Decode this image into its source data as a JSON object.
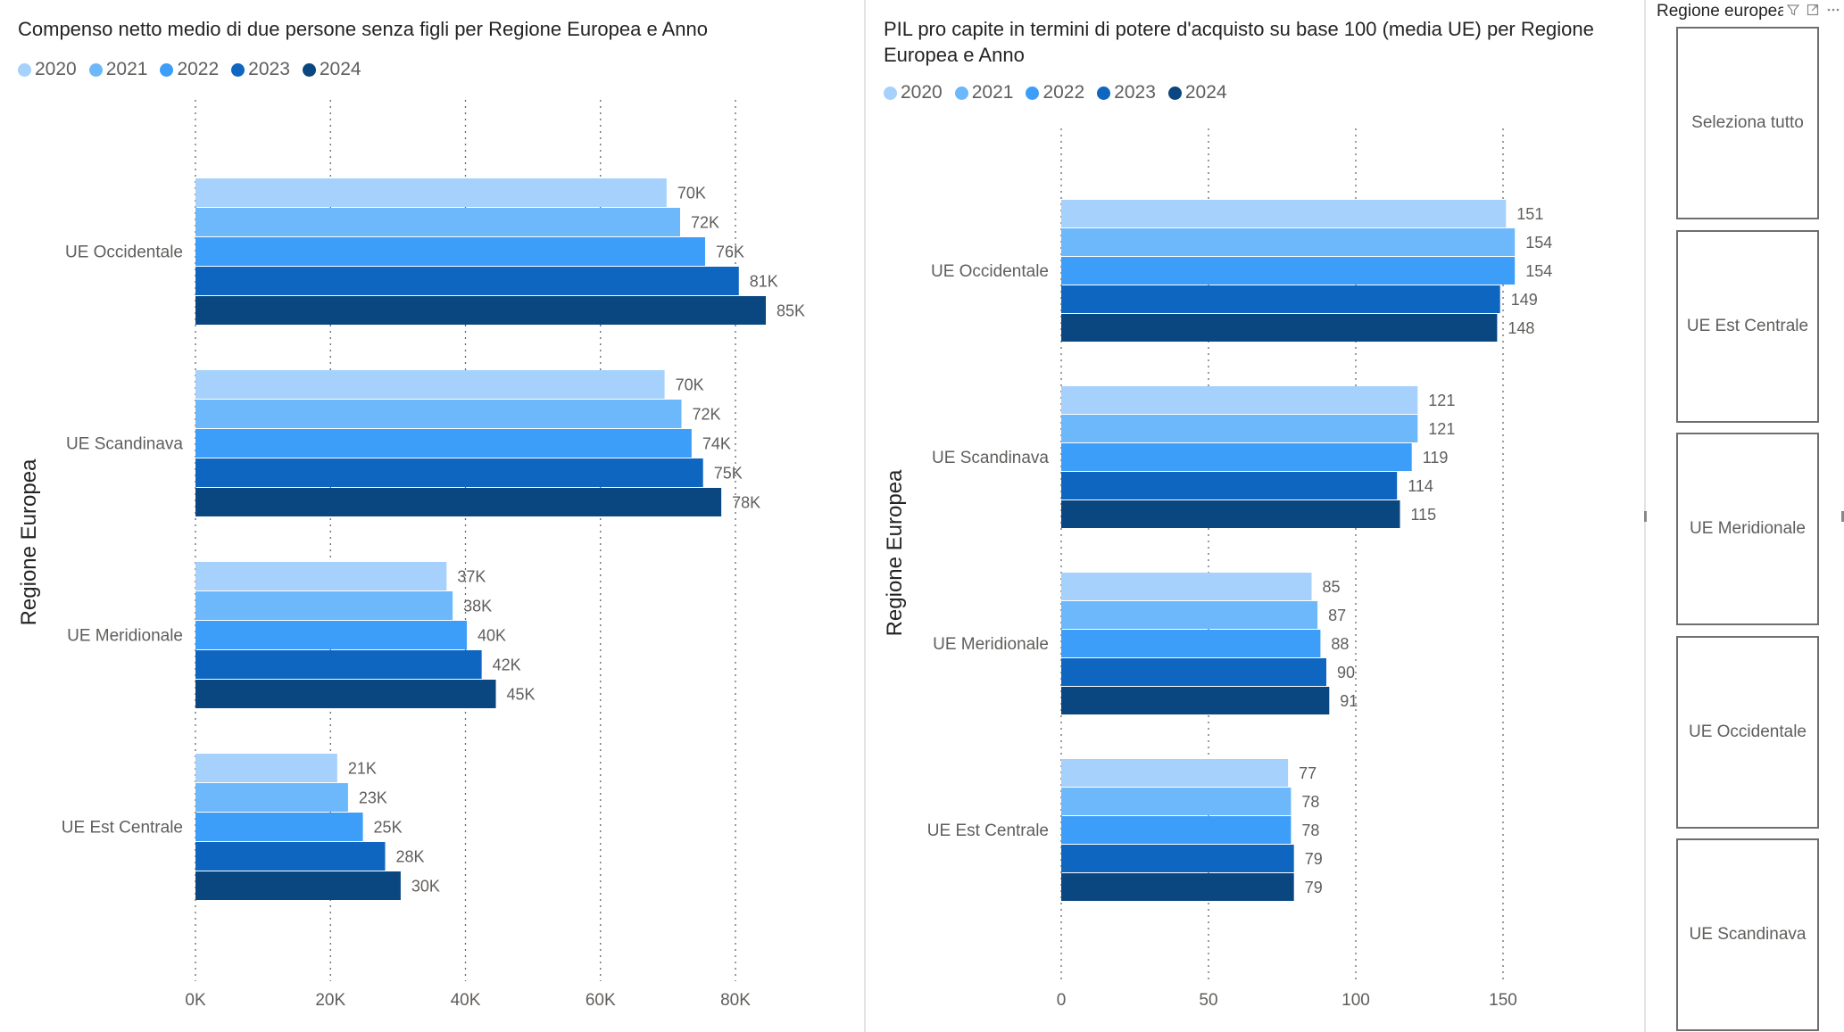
{
  "colors": {
    "2020": "#a5d1fc",
    "2021": "#6cb8fa",
    "2022": "#3c9ef8",
    "2023": "#0f66c1",
    "2024": "#0a4680",
    "grid": "#666666",
    "border": "#6e6e6e"
  },
  "left_chart": {
    "title": "Compenso netto medio di due persone senza figli per Regione Europea e Anno",
    "legend": [
      "2020",
      "2021",
      "2022",
      "2023",
      "2024"
    ],
    "y_axis_title": "Regione Europea",
    "x_ticks": [
      "0K",
      "20K",
      "40K",
      "60K",
      "80K"
    ]
  },
  "right_chart": {
    "title": "PIL pro capite in termini di potere d'acquisto su base 100 (media UE) per Regione Europea e Anno",
    "legend": [
      "2020",
      "2021",
      "2022",
      "2023",
      "2024"
    ],
    "y_axis_title": "Regione Europea",
    "x_ticks": [
      "0",
      "50",
      "100",
      "150"
    ]
  },
  "chart_data": [
    {
      "type": "bar",
      "orientation": "horizontal",
      "title": "Compenso netto medio di due persone senza figli per Regione Europea e Anno",
      "ylabel": "Regione Europea",
      "xlabel": "",
      "categories": [
        "UE Occidentale",
        "UE Scandinava",
        "UE Meridionale",
        "UE Est Centrale"
      ],
      "xlim": [
        0,
        90000
      ],
      "x_ticks": [
        0,
        20000,
        40000,
        60000,
        80000
      ],
      "grid": true,
      "legend_position": "top-left",
      "series": [
        {
          "name": "2020",
          "values": [
            69800,
            69500,
            37200,
            21000
          ],
          "labels": [
            "70K",
            "70K",
            "37K",
            "21K"
          ]
        },
        {
          "name": "2021",
          "values": [
            71800,
            72000,
            38100,
            22600
          ],
          "labels": [
            "72K",
            "72K",
            "38K",
            "23K"
          ]
        },
        {
          "name": "2022",
          "values": [
            75500,
            73500,
            40200,
            24800
          ],
          "labels": [
            "76K",
            "74K",
            "40K",
            "25K"
          ]
        },
        {
          "name": "2023",
          "values": [
            80500,
            75200,
            42400,
            28100
          ],
          "labels": [
            "81K",
            "75K",
            "42K",
            "28K"
          ]
        },
        {
          "name": "2024",
          "values": [
            84500,
            77900,
            44500,
            30400
          ],
          "labels": [
            "85K",
            "78K",
            "45K",
            "30K"
          ]
        }
      ]
    },
    {
      "type": "bar",
      "orientation": "horizontal",
      "title": "PIL pro capite in termini di potere d'acquisto su base 100 (media UE) per Regione Europea e Anno",
      "ylabel": "Regione Europea",
      "xlabel": "",
      "categories": [
        "UE Occidentale",
        "UE Scandinava",
        "UE Meridionale",
        "UE Est Centrale"
      ],
      "xlim": [
        0,
        160
      ],
      "x_ticks": [
        0,
        50,
        100,
        150
      ],
      "grid": true,
      "legend_position": "top-left",
      "series": [
        {
          "name": "2020",
          "values": [
            151,
            121,
            85,
            77
          ],
          "labels": [
            "151",
            "121",
            "85",
            "77"
          ]
        },
        {
          "name": "2021",
          "values": [
            154,
            121,
            87,
            78
          ],
          "labels": [
            "154",
            "121",
            "87",
            "78"
          ]
        },
        {
          "name": "2022",
          "values": [
            154,
            119,
            88,
            78
          ],
          "labels": [
            "154",
            "119",
            "88",
            "78"
          ]
        },
        {
          "name": "2023",
          "values": [
            149,
            114,
            90,
            79
          ],
          "labels": [
            "149",
            "114",
            "90",
            "79"
          ]
        },
        {
          "name": "2024",
          "values": [
            148,
            115,
            91,
            79
          ],
          "labels": [
            "148",
            "115",
            "91",
            "79"
          ]
        }
      ]
    }
  ],
  "slicer": {
    "title": "Regione europea",
    "filter_icon": "filter-icon",
    "focus_icon": "focus-mode-icon",
    "more_icon": "more-options-icon",
    "items": [
      "Seleziona tutto",
      "UE Est Centrale",
      "UE Meridionale",
      "UE Occidentale",
      "UE Scandinava"
    ]
  }
}
